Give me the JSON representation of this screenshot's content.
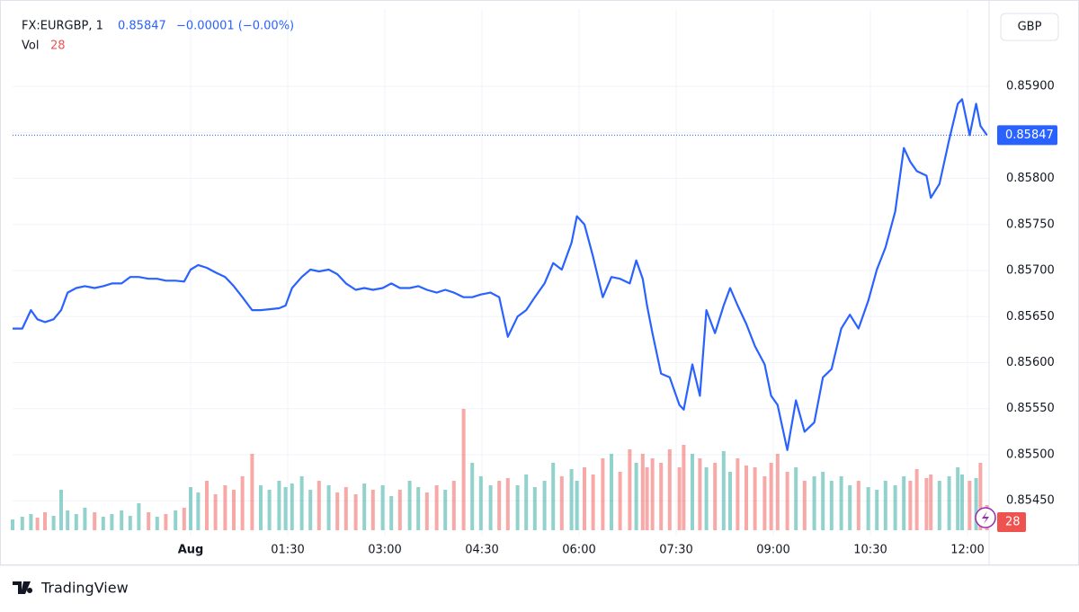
{
  "header": {
    "symbol": "FX:EURGBP, 1",
    "last_price": "0.85847",
    "change": "−0.00001 (−0.00%)",
    "volume_label": "Vol",
    "currency": "GBP",
    "brand": "TradingView"
  },
  "chart_data": {
    "type": "line",
    "series": [
      {
        "name": "FX:EURGBP",
        "color": "#2962ff",
        "x": [
          -165,
          -156,
          -148,
          -142,
          -135,
          -127,
          -120,
          -114,
          -106,
          -98,
          -89,
          -81,
          -73,
          -64,
          -56,
          -48,
          -39,
          -31,
          -23,
          -14,
          -6,
          0,
          7,
          15,
          23,
          32,
          40,
          48,
          57,
          65,
          73,
          82,
          88,
          94,
          103,
          111,
          119,
          128,
          136,
          144,
          153,
          161,
          169,
          178,
          186,
          194,
          203,
          211,
          219,
          228,
          236,
          244,
          253,
          261,
          269,
          278,
          286,
          294,
          303,
          311,
          319,
          328,
          336,
          344,
          353,
          358,
          365,
          373,
          382,
          390,
          398,
          407,
          413,
          419,
          423,
          428,
          436,
          444,
          453,
          457,
          465,
          472,
          478,
          486,
          494,
          500,
          507,
          515,
          523,
          532,
          538,
          544,
          553,
          561,
          569,
          578,
          586,
          594,
          603,
          611,
          619,
          628,
          636,
          644,
          653,
          661,
          667,
          673,
          682,
          686,
          694,
          703,
          711,
          715,
          722,
          728,
          732,
          738
        ],
        "values": [
          0.85637,
          0.85637,
          0.85657,
          0.85647,
          0.85644,
          0.85647,
          0.85657,
          0.85676,
          0.85681,
          0.85683,
          0.85681,
          0.85683,
          0.85686,
          0.85686,
          0.85693,
          0.85693,
          0.85691,
          0.85691,
          0.85689,
          0.85689,
          0.85688,
          0.85701,
          0.85706,
          0.85703,
          0.85698,
          0.85693,
          0.85683,
          0.85671,
          0.85657,
          0.85657,
          0.85658,
          0.85659,
          0.85662,
          0.85681,
          0.85693,
          0.85701,
          0.85699,
          0.85701,
          0.85696,
          0.85686,
          0.85679,
          0.85681,
          0.85679,
          0.85681,
          0.85686,
          0.85681,
          0.85681,
          0.85683,
          0.85679,
          0.85676,
          0.85679,
          0.85676,
          0.85671,
          0.85671,
          0.85674,
          0.85676,
          0.85671,
          0.85628,
          0.8565,
          0.85657,
          0.85671,
          0.85686,
          0.85708,
          0.85701,
          0.8573,
          0.85759,
          0.8575,
          0.85715,
          0.85671,
          0.85693,
          0.85691,
          0.85686,
          0.85711,
          0.85691,
          0.85662,
          0.85632,
          0.85588,
          0.85584,
          0.85554,
          0.85549,
          0.85598,
          0.85564,
          0.85657,
          0.85632,
          0.85662,
          0.85681,
          0.85662,
          0.85642,
          0.85618,
          0.85598,
          0.85564,
          0.85554,
          0.85505,
          0.85559,
          0.85525,
          0.85535,
          0.85584,
          0.85593,
          0.85637,
          0.85652,
          0.85637,
          0.85667,
          0.85701,
          0.85725,
          0.85764,
          0.85833,
          0.85818,
          0.85808,
          0.85803,
          0.85779,
          0.85794,
          0.85842,
          0.85881,
          0.85886,
          0.85847,
          0.85881,
          0.85857,
          0.85847
        ]
      }
    ],
    "volume": {
      "up_color": "#26a69a",
      "down_color": "#ef5350",
      "vlim": [
        0,
        160
      ],
      "values": [
        12,
        15,
        18,
        14,
        20,
        16,
        45,
        22,
        18,
        25,
        20,
        15,
        18,
        22,
        16,
        30,
        20,
        15,
        18,
        22,
        25,
        48,
        42,
        55,
        40,
        50,
        45,
        60,
        85,
        50,
        45,
        55,
        48,
        52,
        60,
        45,
        55,
        50,
        42,
        48,
        40,
        52,
        45,
        50,
        38,
        45,
        55,
        48,
        42,
        50,
        45,
        55,
        135,
        75,
        60,
        50,
        55,
        58,
        50,
        62,
        48,
        55,
        75,
        60,
        68,
        55,
        70,
        62,
        80,
        85,
        65,
        90,
        75,
        85,
        70,
        80,
        75,
        90,
        70,
        95,
        85,
        80,
        70,
        75,
        88,
        65,
        80,
        72,
        70,
        60,
        75,
        85,
        65,
        70,
        55,
        60,
        65,
        55,
        60,
        50,
        55,
        48,
        45,
        55,
        50,
        60,
        55,
        68,
        58,
        62,
        55,
        60,
        70,
        62,
        55,
        58,
        75,
        28
      ]
    },
    "xlim": [
      -165,
      740
    ],
    "xticks": [
      {
        "value": 0,
        "label": "Aug"
      },
      {
        "value": 90,
        "label": "01:30"
      },
      {
        "value": 180,
        "label": "03:00"
      },
      {
        "value": 270,
        "label": "04:30"
      },
      {
        "value": 360,
        "label": "06:00"
      },
      {
        "value": 450,
        "label": "07:30"
      },
      {
        "value": 540,
        "label": "09:00"
      },
      {
        "value": 630,
        "label": "10:30"
      },
      {
        "value": 720,
        "label": "12:00"
      }
    ],
    "ylim": [
      0.85418,
      0.85984
    ],
    "yticks": [
      {
        "value": 0.8545,
        "label": "0.85450"
      },
      {
        "value": 0.855,
        "label": "0.85500"
      },
      {
        "value": 0.8555,
        "label": "0.85550"
      },
      {
        "value": 0.856,
        "label": "0.85600"
      },
      {
        "value": 0.8565,
        "label": "0.85650"
      },
      {
        "value": 0.857,
        "label": "0.85700"
      },
      {
        "value": 0.8575,
        "label": "0.85750"
      },
      {
        "value": 0.858,
        "label": "0.85800"
      },
      {
        "value": 0.8585,
        "label": "0.85850"
      },
      {
        "value": 0.859,
        "label": "0.85900"
      }
    ],
    "grid": true
  }
}
